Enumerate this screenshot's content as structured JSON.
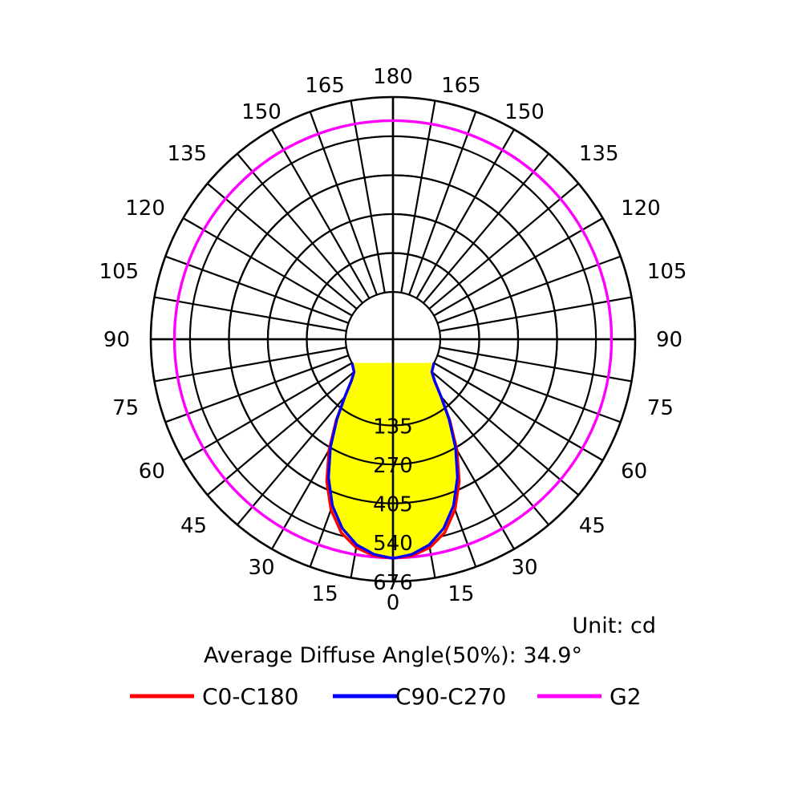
{
  "chart_data": {
    "type": "polar",
    "unit_label": "Unit: cd",
    "diffuse_angle_text": "Average Diffuse Angle(50%): 34.9°",
    "radial_ticks": [
      135,
      270,
      405,
      540,
      676
    ],
    "rmax": 676,
    "angle_ticks": [
      {
        "angle": 0,
        "label": "0"
      },
      {
        "angle": 15,
        "label": "15"
      },
      {
        "angle": 30,
        "label": "30"
      },
      {
        "angle": 45,
        "label": "45"
      },
      {
        "angle": 60,
        "label": "60"
      },
      {
        "angle": 75,
        "label": "75"
      },
      {
        "angle": 90,
        "label": "90"
      },
      {
        "angle": 105,
        "label": "105"
      },
      {
        "angle": 120,
        "label": "120"
      },
      {
        "angle": 135,
        "label": "135"
      },
      {
        "angle": 150,
        "label": "150"
      },
      {
        "angle": 165,
        "label": "165"
      },
      {
        "angle": 180,
        "label": "180"
      }
    ],
    "series": [
      {
        "name": "C0-C180",
        "color": "#ff0000",
        "fill": "#ffff00",
        "angles": [
          0,
          5,
          10,
          15,
          20,
          25,
          30,
          35,
          40,
          45,
          50,
          60
        ],
        "values": [
          596,
          590,
          570,
          530,
          465,
          380,
          280,
          180,
          95,
          40,
          12,
          0
        ]
      },
      {
        "name": "C90-C270",
        "color": "#0000ff",
        "fill": "#ffff00",
        "angles": [
          0,
          5,
          10,
          15,
          20,
          25,
          30,
          35,
          40,
          45,
          50,
          60
        ],
        "values": [
          596,
          585,
          560,
          515,
          450,
          365,
          270,
          175,
          95,
          40,
          12,
          0
        ]
      },
      {
        "name": "G2",
        "color": "#ff00ff",
        "constant_value": 594
      }
    ]
  }
}
